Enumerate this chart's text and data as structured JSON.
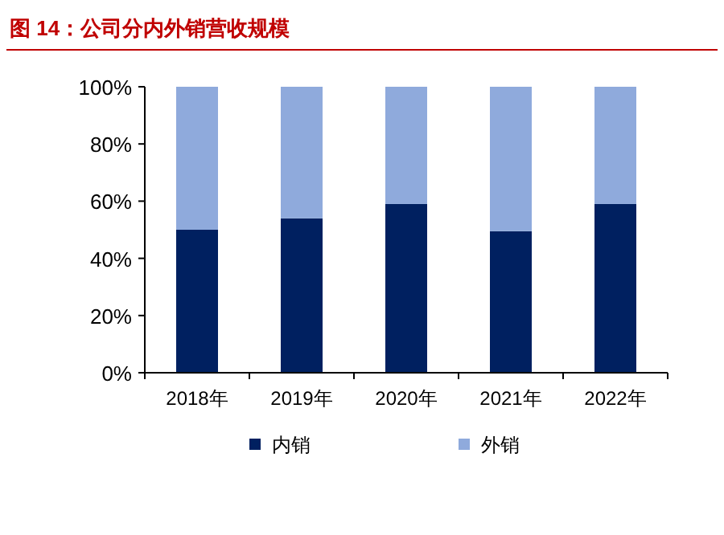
{
  "chart_data": {
    "type": "bar",
    "title": "图 14：公司分内外销营收规模",
    "stacked": true,
    "categories": [
      "2018年",
      "2019年",
      "2020年",
      "2021年",
      "2022年"
    ],
    "series": [
      {
        "name": "内销",
        "color": "#002060",
        "values": [
          50,
          54,
          59,
          49.5,
          59
        ]
      },
      {
        "name": "外销",
        "color": "#8faadc",
        "values": [
          50,
          46,
          41,
          50.5,
          41
        ]
      }
    ],
    "ylim": [
      0,
      100
    ],
    "yticks": [
      {
        "value": 0,
        "label": "0%"
      },
      {
        "value": 20,
        "label": "20%"
      },
      {
        "value": 40,
        "label": "40%"
      },
      {
        "value": 60,
        "label": "60%"
      },
      {
        "value": 80,
        "label": "80%"
      },
      {
        "value": 100,
        "label": "100%"
      }
    ],
    "grid": false,
    "legend": "bottom"
  }
}
